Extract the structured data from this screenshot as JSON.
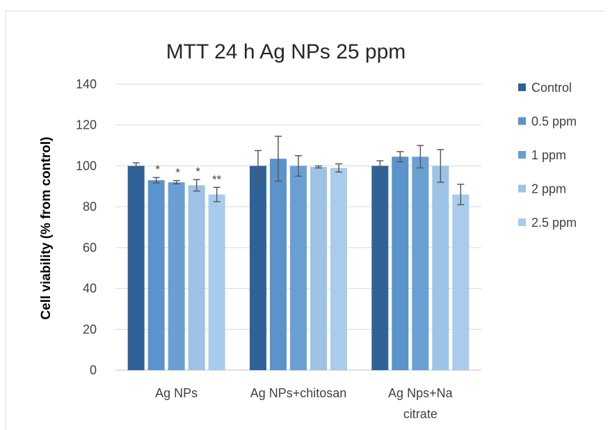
{
  "chart_data": {
    "type": "bar",
    "title": "MTT 24 h Ag NPs 25 ppm",
    "ylabel": "Cell viability (% from control)",
    "xlabel": "",
    "ylim": [
      0,
      140
    ],
    "yticks": [
      0,
      20,
      40,
      60,
      80,
      100,
      120,
      140
    ],
    "grid": true,
    "legend_position": "right",
    "categories": [
      [
        "Ag NPs"
      ],
      [
        "Ag NPs+chitosan"
      ],
      [
        "Ag Nps+Na",
        "citrate"
      ]
    ],
    "series": [
      {
        "name": "Control",
        "color": "#2e6299",
        "values": [
          100,
          100,
          100
        ],
        "errors": [
          1.5,
          7.5,
          2.5
        ],
        "marks": [
          "",
          "",
          ""
        ]
      },
      {
        "name": "0.5 ppm",
        "color": "#5b93cb",
        "values": [
          93,
          103.5,
          104.5
        ],
        "errors": [
          1.3,
          11,
          2.5
        ],
        "marks": [
          "*",
          "",
          ""
        ]
      },
      {
        "name": "1 ppm",
        "color": "#6a9fd4",
        "values": [
          92,
          100,
          104.5
        ],
        "errors": [
          0.8,
          5,
          5.5
        ],
        "marks": [
          "*",
          "",
          ""
        ]
      },
      {
        "name": "2 ppm",
        "color": "#9dc3e6",
        "values": [
          90.5,
          99.5,
          100
        ],
        "errors": [
          2.8,
          0.5,
          8
        ],
        "marks": [
          "*",
          "",
          ""
        ]
      },
      {
        "name": "2.5 ppm",
        "color": "#a9cbec",
        "values": [
          86,
          99,
          86
        ],
        "errors": [
          3.5,
          2,
          5
        ],
        "marks": [
          "**",
          "",
          ""
        ]
      }
    ]
  }
}
